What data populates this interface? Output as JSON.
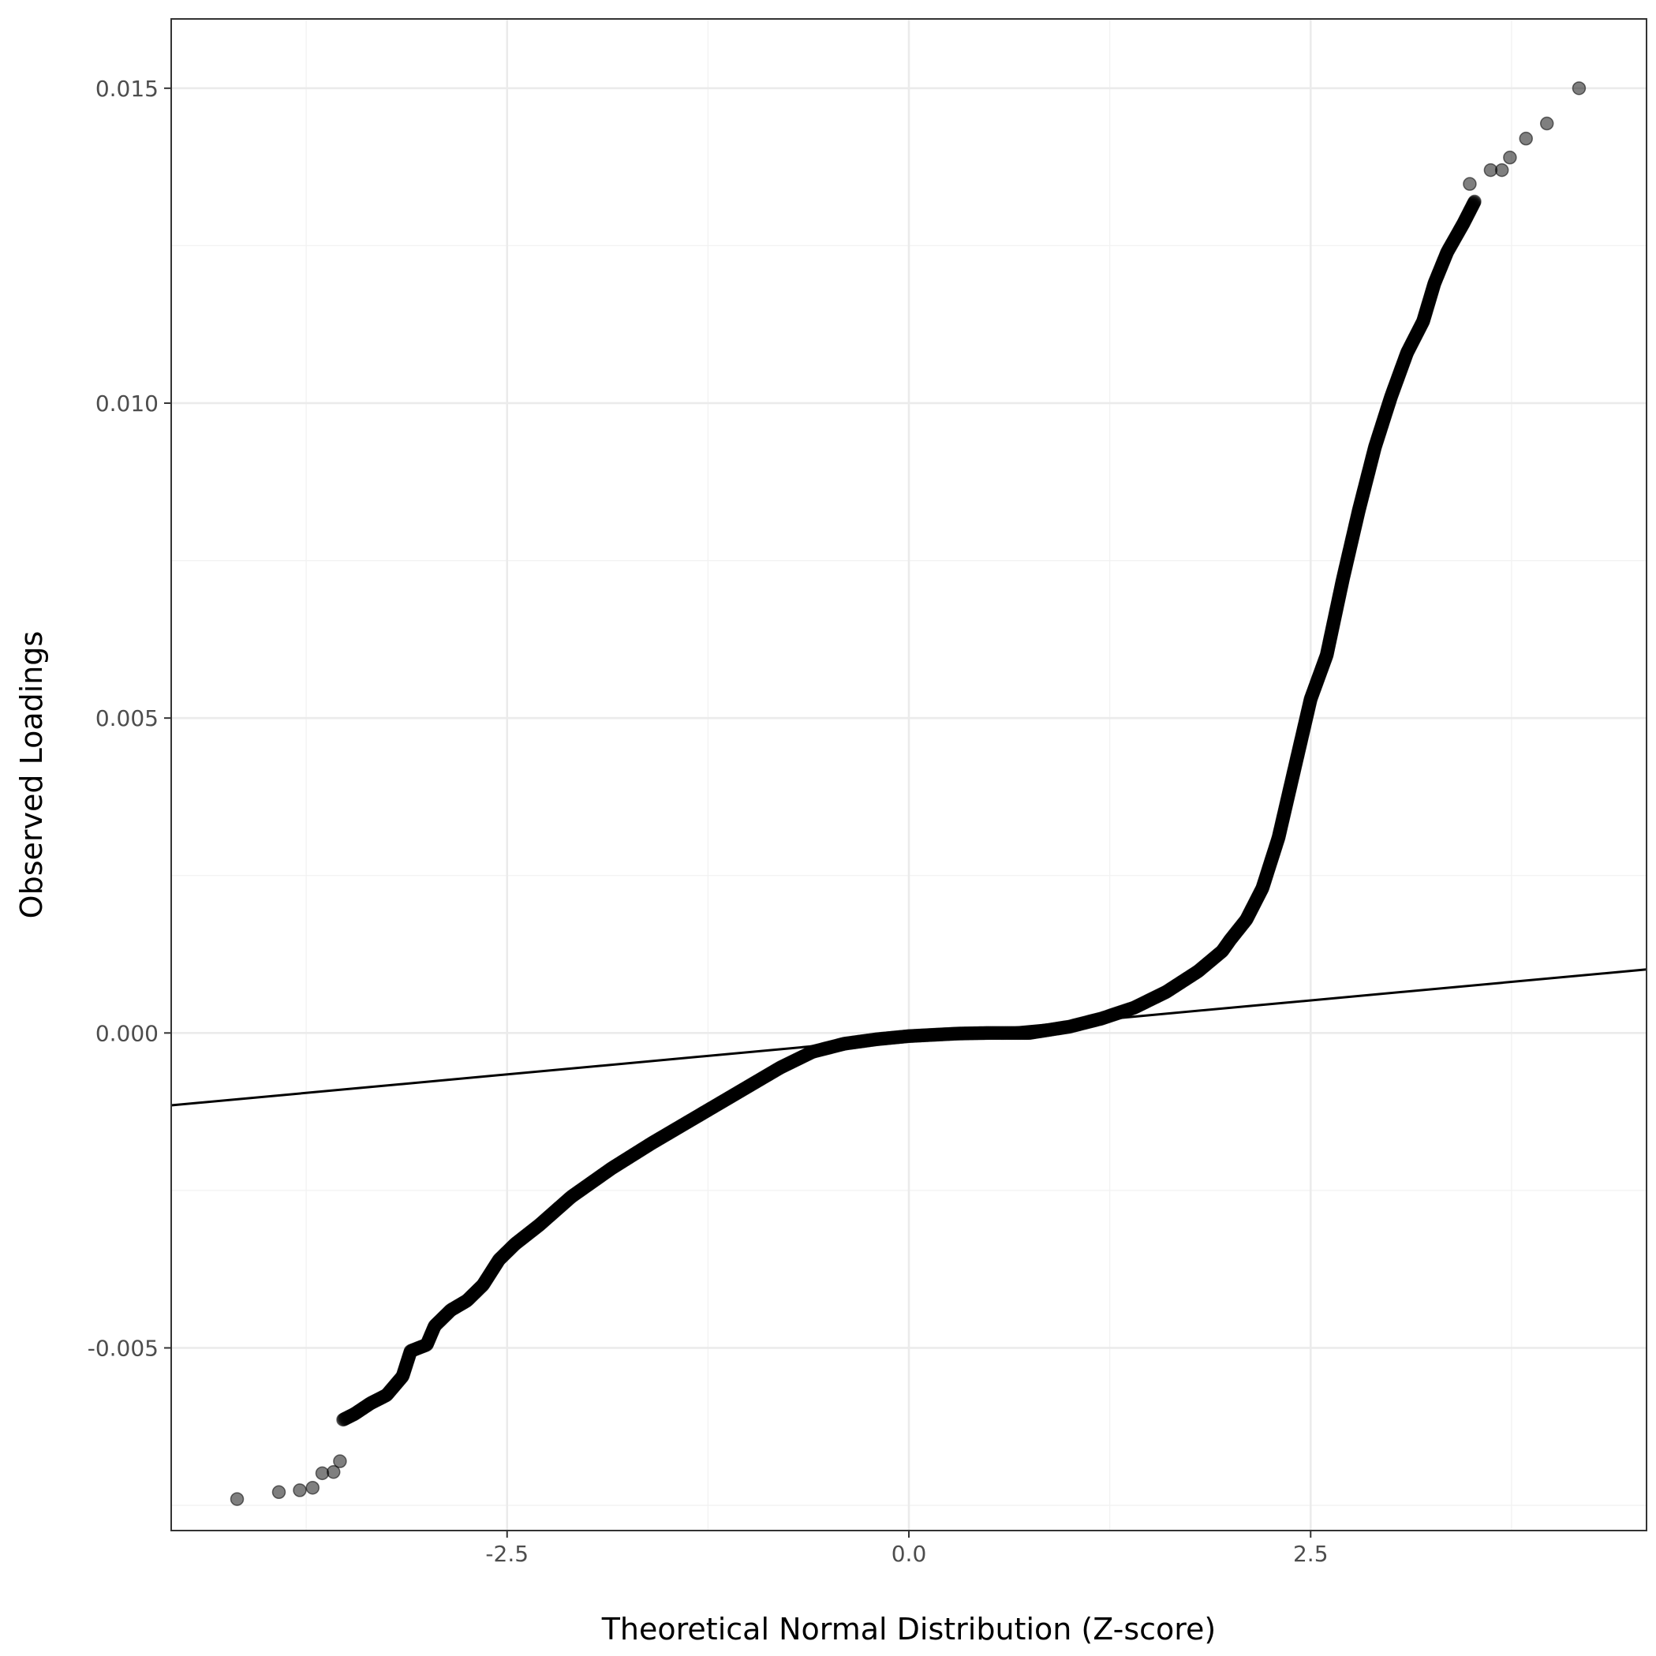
{
  "chart_data": {
    "type": "scatter",
    "xlabel": "Theoretical Normal Distribution (Z-score)",
    "ylabel": "Observed Loadings",
    "xlim": [
      -4.59,
      4.59
    ],
    "ylim": [
      -0.0079,
      0.0161
    ],
    "x_ticks": [
      -2.5,
      0.0,
      2.5
    ],
    "x_tick_labels": [
      "-2.5",
      "0.0",
      "2.5"
    ],
    "y_ticks": [
      -0.005,
      0.0,
      0.005,
      0.01,
      0.015
    ],
    "y_tick_labels": [
      "-0.005",
      "0.000",
      "0.005",
      "0.010",
      "0.015"
    ],
    "grid": true,
    "reference_line": {
      "intercept": -7e-05,
      "slope": 0.000235
    },
    "outlier_points": [
      {
        "x": -4.18,
        "y": -0.0074
      },
      {
        "x": -3.92,
        "y": -0.00729
      },
      {
        "x": -3.79,
        "y": -0.00726
      },
      {
        "x": -3.71,
        "y": -0.00722
      },
      {
        "x": -3.65,
        "y": -0.00699
      },
      {
        "x": -3.58,
        "y": -0.00697
      },
      {
        "x": -3.54,
        "y": -0.0068
      },
      {
        "x": 3.49,
        "y": 0.01348
      },
      {
        "x": 3.62,
        "y": 0.0137
      },
      {
        "x": 3.69,
        "y": 0.0137
      },
      {
        "x": 3.74,
        "y": 0.0139
      },
      {
        "x": 3.84,
        "y": 0.0142
      },
      {
        "x": 3.97,
        "y": 0.01444
      },
      {
        "x": 4.17,
        "y": 0.015
      }
    ],
    "quantile_curve": [
      {
        "x": -3.52,
        "y": -0.00614
      },
      {
        "x": -3.45,
        "y": -0.00605
      },
      {
        "x": -3.35,
        "y": -0.00588
      },
      {
        "x": -3.25,
        "y": -0.00575
      },
      {
        "x": -3.15,
        "y": -0.00545
      },
      {
        "x": -3.1,
        "y": -0.00505
      },
      {
        "x": -3.0,
        "y": -0.00495
      },
      {
        "x": -2.95,
        "y": -0.00465
      },
      {
        "x": -2.85,
        "y": -0.0044
      },
      {
        "x": -2.75,
        "y": -0.00425
      },
      {
        "x": -2.65,
        "y": -0.004
      },
      {
        "x": -2.55,
        "y": -0.0036
      },
      {
        "x": -2.45,
        "y": -0.00335
      },
      {
        "x": -2.3,
        "y": -0.00305
      },
      {
        "x": -2.1,
        "y": -0.0026
      },
      {
        "x": -1.85,
        "y": -0.00215
      },
      {
        "x": -1.6,
        "y": -0.00175
      },
      {
        "x": -1.4,
        "y": -0.00145
      },
      {
        "x": -1.2,
        "y": -0.00115
      },
      {
        "x": -1.0,
        "y": -0.00085
      },
      {
        "x": -0.8,
        "y": -0.00055
      },
      {
        "x": -0.6,
        "y": -0.0003
      },
      {
        "x": -0.4,
        "y": -0.00017
      },
      {
        "x": -0.2,
        "y": -0.0001
      },
      {
        "x": 0.0,
        "y": -5e-05
      },
      {
        "x": 0.3,
        "y": -1e-05
      },
      {
        "x": 0.5,
        "y": 0.0
      },
      {
        "x": 0.75,
        "y": 0.0
      },
      {
        "x": 1.0,
        "y": 0.0001
      },
      {
        "x": 1.2,
        "y": 0.00023
      },
      {
        "x": 1.4,
        "y": 0.0004
      },
      {
        "x": 1.6,
        "y": 0.00065
      },
      {
        "x": 1.8,
        "y": 0.00098
      },
      {
        "x": 1.95,
        "y": 0.0013
      },
      {
        "x": 2.0,
        "y": 0.00148
      },
      {
        "x": 2.1,
        "y": 0.0018
      },
      {
        "x": 2.2,
        "y": 0.0023
      },
      {
        "x": 2.3,
        "y": 0.0031
      },
      {
        "x": 2.4,
        "y": 0.0042
      },
      {
        "x": 2.5,
        "y": 0.0053
      },
      {
        "x": 2.6,
        "y": 0.006
      },
      {
        "x": 2.7,
        "y": 0.0072
      },
      {
        "x": 2.8,
        "y": 0.0083
      },
      {
        "x": 2.9,
        "y": 0.0093
      },
      {
        "x": 3.0,
        "y": 0.0101
      },
      {
        "x": 3.1,
        "y": 0.0108
      },
      {
        "x": 3.2,
        "y": 0.0113
      },
      {
        "x": 3.27,
        "y": 0.0119
      },
      {
        "x": 3.35,
        "y": 0.0124
      },
      {
        "x": 3.45,
        "y": 0.01285
      },
      {
        "x": 3.52,
        "y": 0.0132
      }
    ]
  }
}
